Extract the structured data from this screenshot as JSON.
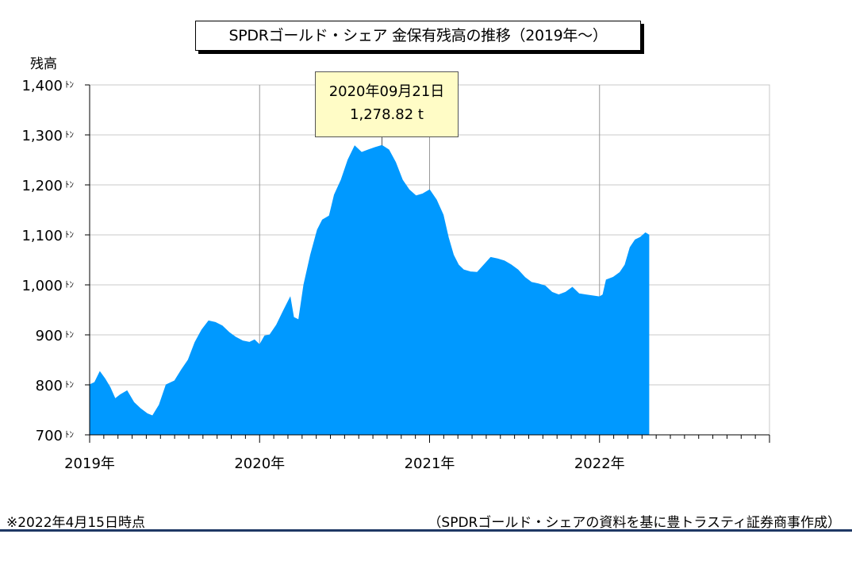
{
  "title": "SPDRゴールド・シェア 金保有残高の推移（2019年〜）",
  "footnote": "※2022年4月15日時点",
  "source": "（SPDRゴールド・シェアの資料を基に豊トラスティ証券商事作成）",
  "callout": {
    "date": "2020年09月21日",
    "value": "1,278.82 t"
  },
  "colors": {
    "area": "#0099ff",
    "grid": "#c8c8c8",
    "callout_bg": "#fffcc6",
    "rule": "#1f3864"
  },
  "chart_data": {
    "type": "area",
    "ylabel": "残高",
    "y_unit": "ﾄﾝ",
    "ylim": [
      700,
      1400
    ],
    "y_ticks": [
      {
        "value": 700,
        "label": "700"
      },
      {
        "value": 800,
        "label": "800"
      },
      {
        "value": 900,
        "label": "900"
      },
      {
        "value": 1000,
        "label": "1,000"
      },
      {
        "value": 1100,
        "label": "1,100"
      },
      {
        "value": 1200,
        "label": "1,200"
      },
      {
        "value": 1300,
        "label": "1,300"
      },
      {
        "value": 1400,
        "label": "1,400"
      }
    ],
    "xlim": [
      2019.0,
      2023.0
    ],
    "x_ticks": [
      {
        "value": 2019,
        "label": "2019年"
      },
      {
        "value": 2020,
        "label": "2020年"
      },
      {
        "value": 2021,
        "label": "2021年"
      },
      {
        "value": 2022,
        "label": "2022年"
      }
    ],
    "grid": true,
    "highlight": {
      "x": 2020.72,
      "y": 1278.82
    },
    "points": [
      [
        2019.0,
        800
      ],
      [
        2019.03,
        805
      ],
      [
        2019.06,
        826
      ],
      [
        2019.09,
        812
      ],
      [
        2019.12,
        795
      ],
      [
        2019.15,
        772
      ],
      [
        2019.18,
        780
      ],
      [
        2019.22,
        788
      ],
      [
        2019.26,
        765
      ],
      [
        2019.3,
        752
      ],
      [
        2019.34,
        742
      ],
      [
        2019.37,
        738
      ],
      [
        2019.41,
        760
      ],
      [
        2019.45,
        800
      ],
      [
        2019.5,
        808
      ],
      [
        2019.54,
        830
      ],
      [
        2019.58,
        850
      ],
      [
        2019.62,
        885
      ],
      [
        2019.66,
        910
      ],
      [
        2019.7,
        928
      ],
      [
        2019.74,
        925
      ],
      [
        2019.78,
        918
      ],
      [
        2019.82,
        905
      ],
      [
        2019.86,
        895
      ],
      [
        2019.9,
        888
      ],
      [
        2019.94,
        885
      ],
      [
        2019.97,
        890
      ],
      [
        2020.0,
        880
      ],
      [
        2020.03,
        898
      ],
      [
        2020.06,
        900
      ],
      [
        2020.1,
        920
      ],
      [
        2020.14,
        948
      ],
      [
        2020.18,
        975
      ],
      [
        2020.2,
        935
      ],
      [
        2020.23,
        930
      ],
      [
        2020.26,
        1000
      ],
      [
        2020.3,
        1060
      ],
      [
        2020.34,
        1110
      ],
      [
        2020.37,
        1130
      ],
      [
        2020.41,
        1138
      ],
      [
        2020.44,
        1180
      ],
      [
        2020.48,
        1210
      ],
      [
        2020.52,
        1250
      ],
      [
        2020.56,
        1278
      ],
      [
        2020.6,
        1265
      ],
      [
        2020.64,
        1270
      ],
      [
        2020.68,
        1275
      ],
      [
        2020.72,
        1278.82
      ],
      [
        2020.76,
        1270
      ],
      [
        2020.8,
        1245
      ],
      [
        2020.84,
        1210
      ],
      [
        2020.88,
        1190
      ],
      [
        2020.92,
        1178
      ],
      [
        2020.96,
        1182
      ],
      [
        2021.0,
        1190
      ],
      [
        2021.04,
        1170
      ],
      [
        2021.08,
        1140
      ],
      [
        2021.11,
        1095
      ],
      [
        2021.14,
        1060
      ],
      [
        2021.17,
        1040
      ],
      [
        2021.2,
        1030
      ],
      [
        2021.24,
        1026
      ],
      [
        2021.28,
        1025
      ],
      [
        2021.32,
        1040
      ],
      [
        2021.36,
        1055
      ],
      [
        2021.4,
        1052
      ],
      [
        2021.44,
        1048
      ],
      [
        2021.48,
        1040
      ],
      [
        2021.52,
        1030
      ],
      [
        2021.56,
        1015
      ],
      [
        2021.6,
        1005
      ],
      [
        2021.64,
        1002
      ],
      [
        2021.68,
        998
      ],
      [
        2021.72,
        985
      ],
      [
        2021.76,
        980
      ],
      [
        2021.8,
        985
      ],
      [
        2021.84,
        995
      ],
      [
        2021.88,
        982
      ],
      [
        2021.92,
        980
      ],
      [
        2021.96,
        978
      ],
      [
        2022.0,
        976
      ],
      [
        2022.02,
        980
      ],
      [
        2022.04,
        1010
      ],
      [
        2022.08,
        1015
      ],
      [
        2022.12,
        1025
      ],
      [
        2022.15,
        1040
      ],
      [
        2022.18,
        1075
      ],
      [
        2022.21,
        1090
      ],
      [
        2022.24,
        1095
      ],
      [
        2022.27,
        1104
      ],
      [
        2022.29,
        1100
      ]
    ]
  }
}
